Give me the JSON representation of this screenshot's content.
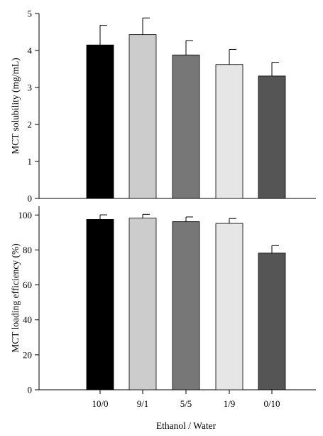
{
  "chart_data": [
    {
      "type": "bar",
      "categories": [
        "10/0",
        "9/1",
        "5/5",
        "1/9",
        "0/10"
      ],
      "values": [
        4.15,
        4.43,
        3.88,
        3.62,
        3.31
      ],
      "errors": [
        0.53,
        0.45,
        0.39,
        0.41,
        0.37
      ],
      "colors": [
        "#000000",
        "#cccccc",
        "#777777",
        "#e6e6e6",
        "#555555"
      ],
      "title": "",
      "xlabel": "",
      "ylabel": "MCT solubility (mg/mL)",
      "ylim": [
        0,
        5
      ],
      "yticks": [
        "0",
        "1",
        "2",
        "3",
        "4",
        "5"
      ],
      "grid": false
    },
    {
      "type": "bar",
      "categories": [
        "10/0",
        "9/1",
        "5/5",
        "1/9",
        "0/10"
      ],
      "values": [
        97.5,
        98.2,
        96.2,
        95.2,
        78.2
      ],
      "errors": [
        2.6,
        2.2,
        2.7,
        2.8,
        4.3
      ],
      "colors": [
        "#000000",
        "#cccccc",
        "#777777",
        "#e6e6e6",
        "#555555"
      ],
      "title": "",
      "xlabel": "Ethanol / Water",
      "ylabel": "MCT loading efficiency (%)",
      "ylim": [
        0,
        105
      ],
      "yticks": [
        "0",
        "20",
        "40",
        "60",
        "80",
        "100"
      ],
      "grid": false
    }
  ]
}
